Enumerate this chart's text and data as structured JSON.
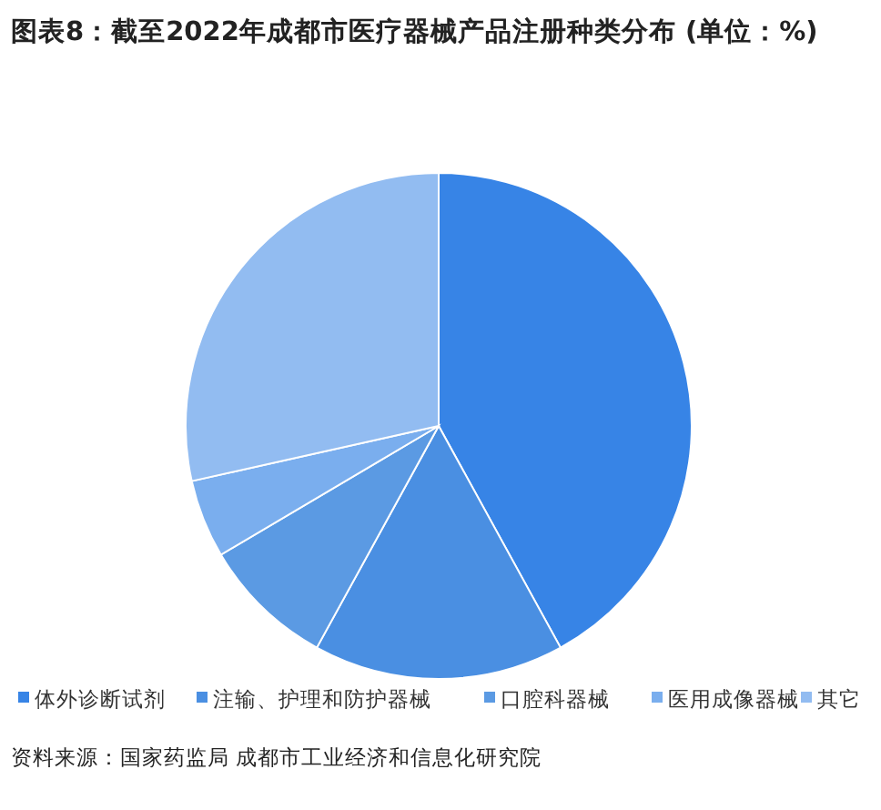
{
  "chart_data": {
    "type": "pie",
    "title": "图表8：截至2022年成都市医疗器械产品注册种类分布 (单位：%)",
    "categories": [
      "体外诊断试剂",
      "注输、护理和防护器械",
      "口腔科器械",
      "医用成像器械",
      "其它"
    ],
    "values": [
      42,
      16,
      8.5,
      5,
      28.5
    ],
    "colors": [
      "#3784e6",
      "#4a8fe2",
      "#5b9ae3",
      "#7aaeee",
      "#92bcf1"
    ],
    "legend": "bottom",
    "annotations": [
      "资料来源：国家药监局 成都市工业经济和信息化研究院"
    ]
  }
}
